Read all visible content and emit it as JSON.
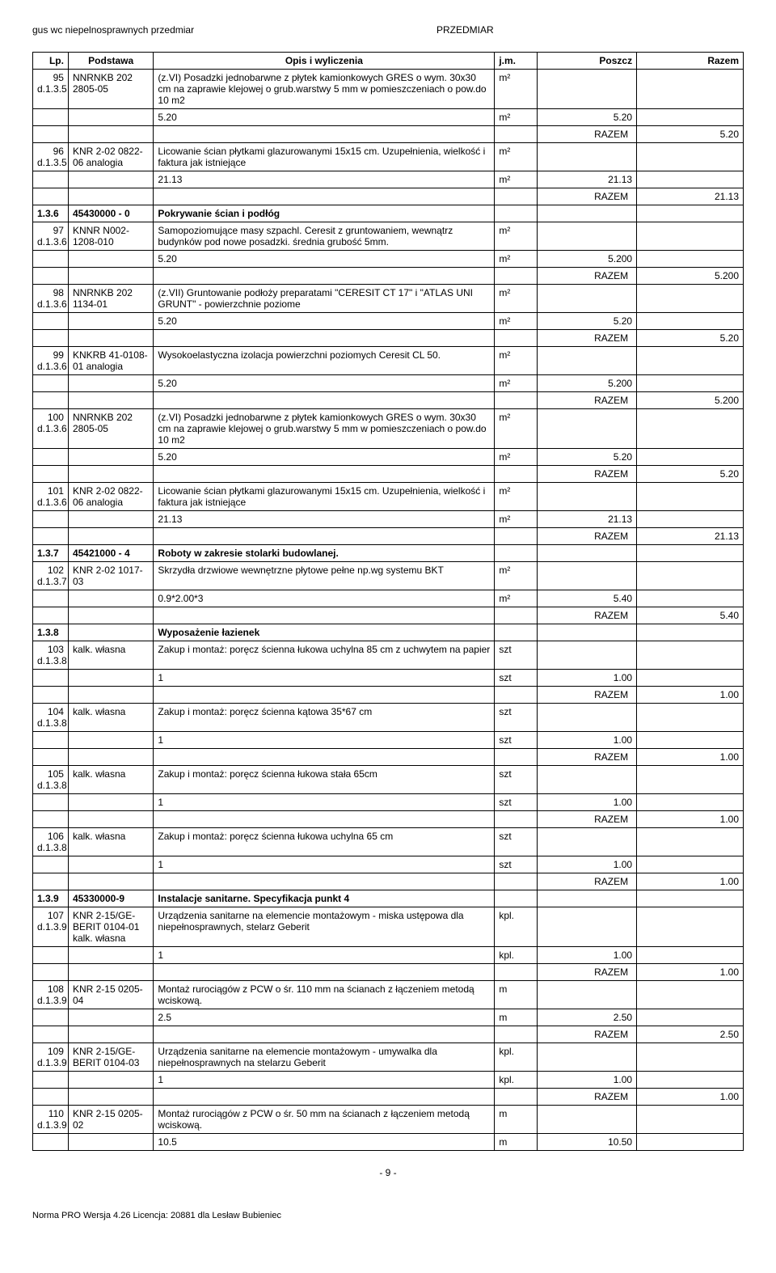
{
  "header": {
    "left": "gus wc niepelnosprawnych przedmiar",
    "center": "PRZEDMIAR"
  },
  "columns": {
    "lp": "Lp.",
    "podstawa": "Podstawa",
    "opis": "Opis i wyliczenia",
    "jm": "j.m.",
    "poszcz": "Poszcz",
    "razem": "Razem"
  },
  "rows": [
    {
      "lp": "95",
      "lp2": "d.1.3.5",
      "podstawa": "NNRNKB 202 2805-05",
      "opis": "(z.VI) Posadzki jednobarwne z płytek kamionkowych GRES o wym. 30x30 cm na zaprawie klejowej o grub.warstwy 5 mm w pomieszczeniach o pow.do 10 m2",
      "jm": "m²"
    },
    {
      "opis": "5.20",
      "jm": "m²",
      "poszcz": "5.20"
    },
    {
      "razem_label": "RAZEM",
      "razem": "5.20"
    },
    {
      "lp": "96",
      "lp2": "d.1.3.5",
      "podstawa": "KNR 2-02 0822-06 analogia",
      "opis": "Licowanie ścian płytkami glazurowanymi 15x15 cm. Uzupełnienia, wielkość i faktura jak istniejące",
      "jm": "m²"
    },
    {
      "opis": "21.13",
      "jm": "m²",
      "poszcz": "21.13"
    },
    {
      "razem_label": "RAZEM",
      "razem": "21.13"
    },
    {
      "section": true,
      "lp": "1.3.6",
      "podstawa": "45430000 - 0",
      "opis": "Pokrywanie ścian i podłóg"
    },
    {
      "lp": "97",
      "lp2": "d.1.3.6",
      "podstawa": "KNNR N002-1208-010",
      "opis": "Samopoziomujące masy szpachl. Ceresit z gruntowaniem, wewnątrz budynków pod nowe posadzki. średnia grubość 5mm.",
      "jm": "m²"
    },
    {
      "opis": "5.20",
      "jm": "m²",
      "poszcz": "5.200"
    },
    {
      "razem_label": "RAZEM",
      "razem": "5.200"
    },
    {
      "lp": "98",
      "lp2": "d.1.3.6",
      "podstawa": "NNRNKB 202 1134-01",
      "opis": "(z.VII) Gruntowanie podłoży preparatami \"CERESIT CT 17\" i \"ATLAS UNI GRUNT\" - powierzchnie poziome",
      "jm": "m²"
    },
    {
      "opis": "5.20",
      "jm": "m²",
      "poszcz": "5.20"
    },
    {
      "razem_label": "RAZEM",
      "razem": "5.20"
    },
    {
      "lp": "99",
      "lp2": "d.1.3.6",
      "podstawa": "KNKRB 41-0108-01 analogia",
      "opis": "Wysokoelastyczna izolacja powierzchni poziomych Ceresit CL 50.",
      "jm": "m²"
    },
    {
      "opis": "5.20",
      "jm": "m²",
      "poszcz": "5.200"
    },
    {
      "razem_label": "RAZEM",
      "razem": "5.200"
    },
    {
      "lp": "100",
      "lp2": "d.1.3.6",
      "podstawa": "NNRNKB 202 2805-05",
      "opis": "(z.VI) Posadzki jednobarwne z płytek kamionkowych GRES o wym. 30x30 cm na zaprawie klejowej o grub.warstwy 5 mm w pomieszczeniach o pow.do 10 m2",
      "jm": "m²"
    },
    {
      "opis": "5.20",
      "jm": "m²",
      "poszcz": "5.20"
    },
    {
      "razem_label": "RAZEM",
      "razem": "5.20"
    },
    {
      "lp": "101",
      "lp2": "d.1.3.6",
      "podstawa": "KNR 2-02 0822-06 analogia",
      "opis": "Licowanie ścian płytkami glazurowanymi 15x15 cm. Uzupełnienia, wielkość i faktura jak istniejące",
      "jm": "m²"
    },
    {
      "opis": "21.13",
      "jm": "m²",
      "poszcz": "21.13"
    },
    {
      "razem_label": "RAZEM",
      "razem": "21.13"
    },
    {
      "section": true,
      "lp": "1.3.7",
      "podstawa": "45421000 - 4",
      "opis": "Roboty w zakresie stolarki budowlanej."
    },
    {
      "lp": "102",
      "lp2": "d.1.3.7",
      "podstawa": "KNR 2-02 1017-03",
      "opis": "Skrzydła drzwiowe wewnętrzne płytowe pełne np.wg systemu BKT",
      "jm": "m²"
    },
    {
      "opis": "0.9*2.00*3",
      "jm": "m²",
      "poszcz": "5.40"
    },
    {
      "razem_label": "RAZEM",
      "razem": "5.40"
    },
    {
      "section": true,
      "lp": "1.3.8",
      "opis": "Wyposażenie łazienek"
    },
    {
      "lp": "103",
      "lp2": "d.1.3.8",
      "podstawa": "kalk. własna",
      "opis": "Zakup i montaż: poręcz ścienna łukowa uchylna 85 cm z uchwytem na papier",
      "jm": "szt"
    },
    {
      "opis": "1",
      "jm": "szt",
      "poszcz": "1.00"
    },
    {
      "razem_label": "RAZEM",
      "razem": "1.00"
    },
    {
      "lp": "104",
      "lp2": "d.1.3.8",
      "podstawa": "kalk. własna",
      "opis": "Zakup i montaż: poręcz ścienna kątowa 35*67 cm",
      "jm": "szt"
    },
    {
      "opis": "1",
      "jm": "szt",
      "poszcz": "1.00"
    },
    {
      "razem_label": "RAZEM",
      "razem": "1.00"
    },
    {
      "lp": "105",
      "lp2": "d.1.3.8",
      "podstawa": "kalk. własna",
      "opis": "Zakup i montaż: poręcz ścienna łukowa stała 65cm",
      "jm": "szt"
    },
    {
      "opis": "1",
      "jm": "szt",
      "poszcz": "1.00"
    },
    {
      "razem_label": "RAZEM",
      "razem": "1.00"
    },
    {
      "lp": "106",
      "lp2": "d.1.3.8",
      "podstawa": "kalk. własna",
      "opis": "Zakup i montaż: poręcz ścienna łukowa uchylna 65 cm",
      "jm": "szt"
    },
    {
      "opis": "1",
      "jm": "szt",
      "poszcz": "1.00"
    },
    {
      "razem_label": "RAZEM",
      "razem": "1.00"
    },
    {
      "section": true,
      "lp": "1.3.9",
      "podstawa": "45330000-9",
      "opis": "Instalacje sanitarne. Specyfikacja punkt 4"
    },
    {
      "lp": "107",
      "lp2": "d.1.3.9",
      "podstawa": "KNR 2-15/GE-BERIT 0104-01 kalk. własna",
      "opis": "Urządzenia sanitarne na elemencie montażowym - miska ustępowa dla niepełnosprawnych, stelarz Geberit",
      "jm": "kpl."
    },
    {
      "opis": "1",
      "jm": "kpl.",
      "poszcz": "1.00"
    },
    {
      "razem_label": "RAZEM",
      "razem": "1.00"
    },
    {
      "lp": "108",
      "lp2": "d.1.3.9",
      "podstawa": "KNR 2-15 0205-04",
      "opis": "Montaż rurociągów z PCW o śr. 110 mm na ścianach z łączeniem metodą wciskową.",
      "jm": "m"
    },
    {
      "opis": "2.5",
      "jm": "m",
      "poszcz": "2.50"
    },
    {
      "razem_label": "RAZEM",
      "razem": "2.50"
    },
    {
      "lp": "109",
      "lp2": "d.1.3.9",
      "podstawa": "KNR 2-15/GE-BERIT 0104-03",
      "opis": "Urządzenia sanitarne na elemencie montażowym - umywalka dla niepełnosprawnych na stelarzu Geberit",
      "jm": "kpl."
    },
    {
      "opis": "1",
      "jm": "kpl.",
      "poszcz": "1.00"
    },
    {
      "razem_label": "RAZEM",
      "razem": "1.00"
    },
    {
      "lp": "110",
      "lp2": "d.1.3.9",
      "podstawa": "KNR 2-15 0205-02",
      "opis": "Montaż rurociągów z PCW o śr. 50 mm na ścianach z łączeniem metodą wciskową.",
      "jm": "m"
    },
    {
      "opis": "10.5",
      "jm": "m",
      "poszcz": "10.50"
    }
  ],
  "page_number": "- 9 -",
  "footer": "Norma PRO Wersja 4.26 Licencja: 20881 dla Lesław Bubieniec"
}
